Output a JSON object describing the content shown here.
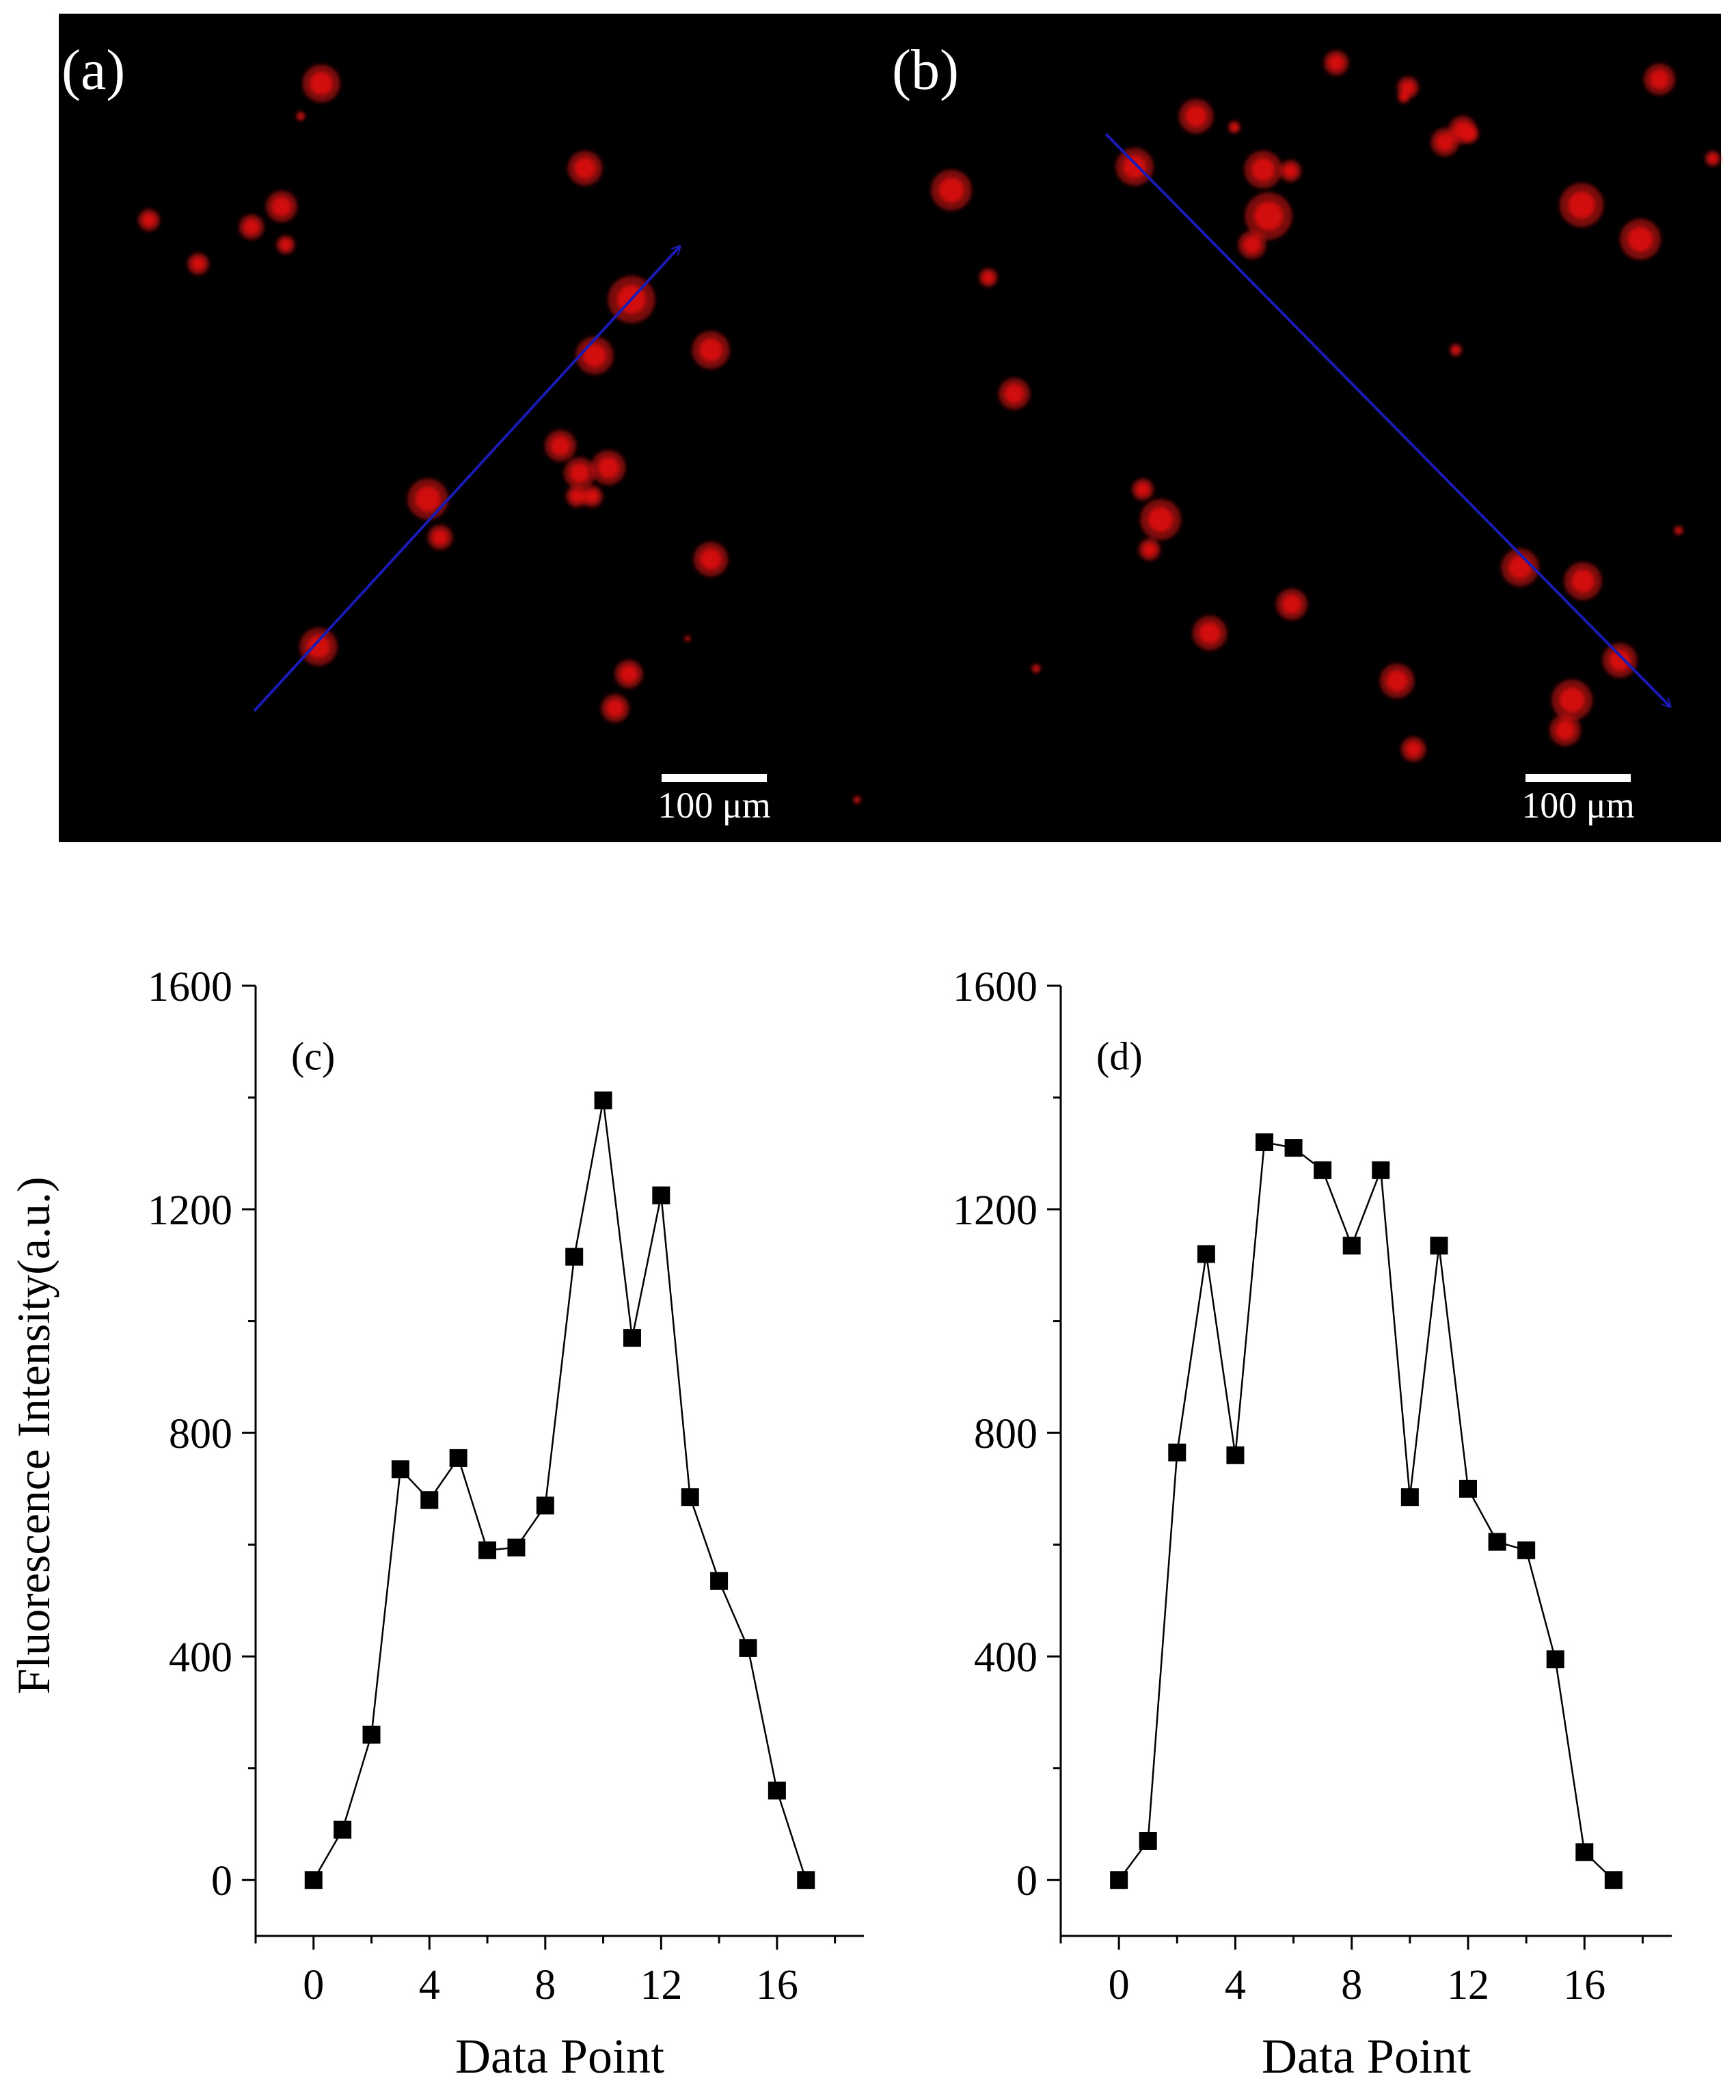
{
  "micrographs": [
    {
      "label": "(a)",
      "scale_bar_label": "100 μm",
      "arrow_color": "#1a1ab4",
      "cell_color": "#e01010"
    },
    {
      "label": "(b)",
      "scale_bar_label": "100 μm",
      "arrow_color": "#1a1ab4",
      "cell_color": "#e01010"
    }
  ],
  "chart_data": [
    {
      "type": "line",
      "panel_label": "(c)",
      "xlabel": "Data Point",
      "ylabel": "Fluorescence Intensity(a.u.)",
      "xlim": [
        -2,
        19
      ],
      "ylim": [
        -100,
        1600
      ],
      "xticks": [
        0,
        4,
        8,
        12,
        16
      ],
      "yticks": [
        0,
        400,
        800,
        1200,
        1600
      ],
      "marker": "square",
      "series": [
        {
          "x": [
            0,
            1,
            2,
            3,
            4,
            5,
            6,
            7,
            8,
            9,
            10,
            11,
            12,
            13,
            14,
            15,
            16,
            17
          ],
          "values": [
            0,
            90,
            260,
            735,
            680,
            755,
            590,
            595,
            670,
            1115,
            1395,
            970,
            1225,
            685,
            535,
            415,
            160,
            0
          ]
        }
      ]
    },
    {
      "type": "line",
      "panel_label": "(d)",
      "xlabel": "Data Point",
      "ylabel": "",
      "xlim": [
        -2,
        19
      ],
      "ylim": [
        -100,
        1600
      ],
      "xticks": [
        0,
        4,
        8,
        12,
        16
      ],
      "yticks": [
        0,
        400,
        800,
        1200,
        1600
      ],
      "marker": "square",
      "series": [
        {
          "x": [
            0,
            1,
            2,
            3,
            4,
            5,
            6,
            7,
            8,
            9,
            10,
            11,
            12,
            13,
            14,
            15,
            16,
            17
          ],
          "values": [
            0,
            70,
            765,
            1120,
            760,
            1320,
            1310,
            1270,
            1135,
            1270,
            685,
            1135,
            700,
            605,
            590,
            395,
            50,
            0
          ]
        }
      ]
    }
  ]
}
